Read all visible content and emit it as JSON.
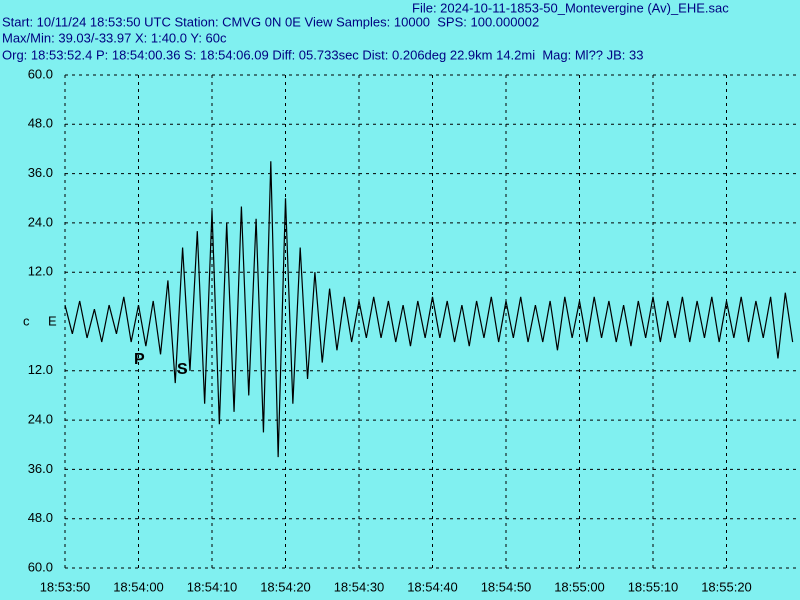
{
  "chart_data": {
    "type": "line",
    "title": "File: 2024-10-11-1853-50_Montevergine (Av)_EHE.sac",
    "subtitle": [
      "Start: 10/11/24 18:53:50 UTC Station: CMVG 0N 0E View Samples: 10000  SPS: 100.000002",
      "Max/Min: 39.03/-33.97 X: 1:40.0 Y: 60c",
      "Org: 18:53:52.4 P: 18:54:00.36 S: 18:54:06.09 Diff: 05.733sec Dist: 0.206deg 22.9km 14.2mi  Mag: Ml?? JB: 33"
    ],
    "channel_labels": [
      "c",
      "E"
    ],
    "annotations": [
      "P",
      "S"
    ],
    "x": [
      "18:53:50",
      "18:53:51",
      "18:53:52",
      "18:53:53",
      "18:53:54",
      "18:53:55",
      "18:53:56",
      "18:53:57",
      "18:53:58",
      "18:53:59",
      "18:54:00",
      "18:54:01",
      "18:54:02",
      "18:54:03",
      "18:54:04",
      "18:54:05",
      "18:54:06",
      "18:54:07",
      "18:54:08",
      "18:54:09",
      "18:54:10",
      "18:54:11",
      "18:54:12",
      "18:54:13",
      "18:54:14",
      "18:54:15",
      "18:54:16",
      "18:54:17",
      "18:54:18",
      "18:54:19",
      "18:54:20",
      "18:54:21",
      "18:54:22",
      "18:54:23",
      "18:54:24",
      "18:54:25",
      "18:54:26",
      "18:54:27",
      "18:54:28",
      "18:54:29",
      "18:54:30",
      "18:54:31",
      "18:54:32",
      "18:54:33",
      "18:54:34",
      "18:54:35",
      "18:54:36",
      "18:54:37",
      "18:54:38",
      "18:54:39",
      "18:54:40",
      "18:54:41",
      "18:54:42",
      "18:54:43",
      "18:54:44",
      "18:54:45",
      "18:54:46",
      "18:54:47",
      "18:54:48",
      "18:54:49",
      "18:54:50",
      "18:54:51",
      "18:54:52",
      "18:54:53",
      "18:54:54",
      "18:54:55",
      "18:54:56",
      "18:54:57",
      "18:54:58",
      "18:54:59",
      "18:55:00",
      "18:55:01",
      "18:55:02",
      "18:55:03",
      "18:55:04",
      "18:55:05",
      "18:55:06",
      "18:55:07",
      "18:55:08",
      "18:55:09",
      "18:55:10",
      "18:55:11",
      "18:55:12",
      "18:55:13",
      "18:55:14",
      "18:55:15",
      "18:55:16",
      "18:55:17",
      "18:55:18",
      "18:55:19",
      "18:55:20",
      "18:55:21",
      "18:55:22",
      "18:55:23",
      "18:55:24",
      "18:55:25",
      "18:55:26",
      "18:55:27",
      "18:55:28",
      "18:55:29"
    ],
    "series": [
      {
        "name": "EHE",
        "color": "#000000",
        "values": [
          4,
          -3,
          5,
          -4,
          3,
          -5,
          4,
          -3,
          6,
          -5,
          4,
          -6,
          5,
          -8,
          10,
          -15,
          18,
          -12,
          22,
          -20,
          27,
          -25,
          24,
          -22,
          28,
          -18,
          25,
          -27,
          39,
          -33,
          30,
          -20,
          18,
          -14,
          12,
          -10,
          8,
          -7,
          6,
          -5,
          5,
          -4,
          6,
          -4,
          5,
          -5,
          4,
          -6,
          5,
          -4,
          6,
          -4,
          5,
          -5,
          4,
          -6,
          5,
          -4,
          6,
          -5,
          5,
          -4,
          6,
          -5,
          4,
          -5,
          5,
          -7,
          6,
          -4,
          5,
          -5,
          6,
          -4,
          5,
          -5,
          4,
          -6,
          5,
          -4,
          6,
          -5,
          5,
          -4,
          6,
          -5,
          5,
          -4,
          6,
          -5,
          5,
          -4,
          6,
          -5,
          5,
          -4,
          6,
          -9,
          7,
          -5
        ]
      }
    ],
    "xlim": [
      "18:53:50",
      "18:55:30"
    ],
    "xticks": [
      "18:53:50",
      "18:54:00",
      "18:54:10",
      "18:54:20",
      "18:54:30",
      "18:54:40",
      "18:54:50",
      "18:55:00",
      "18:55:10",
      "18:55:20"
    ],
    "ylim": [
      -60,
      60
    ],
    "yticks": [
      {
        "value": 60,
        "label": "60.0"
      },
      {
        "value": 48,
        "label": "48.0"
      },
      {
        "value": 36,
        "label": "36.0"
      },
      {
        "value": 24,
        "label": "24.0"
      },
      {
        "value": 12,
        "label": "12.0"
      },
      {
        "value": -12,
        "label": "12.0"
      },
      {
        "value": -24,
        "label": "24.0"
      },
      {
        "value": -36,
        "label": "36.0"
      },
      {
        "value": -48,
        "label": "48.0"
      },
      {
        "value": -60,
        "label": "60.0"
      }
    ],
    "grid": true
  }
}
